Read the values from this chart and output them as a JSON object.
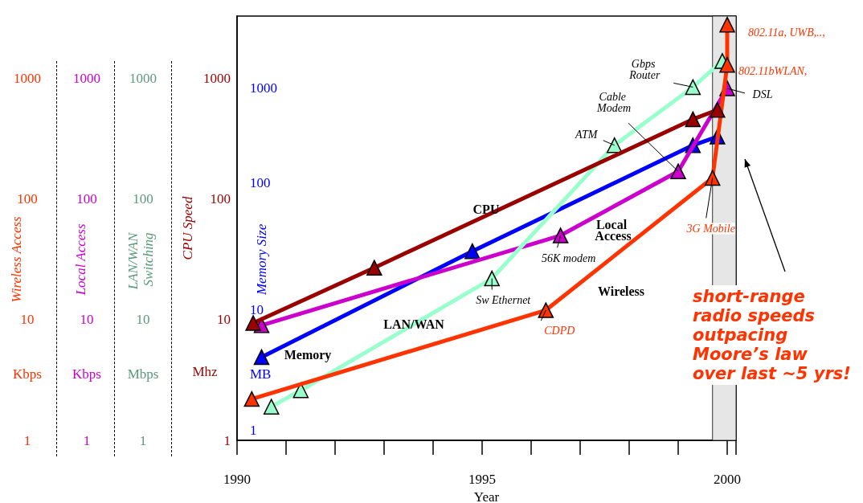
{
  "chart_data": {
    "type": "line",
    "xlabel": "Year",
    "ylabel": "CPU Speed",
    "xlim": [
      1990,
      2000.18
    ],
    "xticks": [
      1990,
      1995,
      2000
    ],
    "log": "y",
    "ylim": [
      1,
      3300
    ],
    "yticks": [
      1,
      10,
      100,
      1000
    ],
    "marker": "triangle",
    "legend": false,
    "grid": false,
    "series": [
      {
        "name": "CPU",
        "color": "#990000",
        "x": [
          1990.33,
          1992.8,
          1999.3,
          1999.8
        ],
        "values": [
          9.4,
          27,
          460,
          550
        ]
      },
      {
        "name": "Memory",
        "color": "#0000ff",
        "x": [
          1990.5,
          1994.8,
          1999.3,
          1999.8
        ],
        "values": [
          4.9,
          37,
          280,
          330
        ]
      },
      {
        "name": "Local Access",
        "color": "#cc00cc",
        "x": [
          1990.5,
          1996.6,
          1999.0,
          2000
        ],
        "values": [
          9,
          50,
          170,
          830
        ]
      },
      {
        "name": "LAN/WAN",
        "color": "#99ffcc",
        "x": [
          1990.7,
          1991.3,
          1995.2,
          1997.7,
          1999.3,
          1999.9
        ],
        "values": [
          1.9,
          2.6,
          22,
          280,
          850,
          1400
        ]
      },
      {
        "name": "Wireless",
        "color": "#ff3300",
        "x": [
          1990.3,
          1996.3,
          1999.7,
          2000,
          2000
        ],
        "values": [
          2.2,
          12,
          150,
          1300,
          2800
        ]
      }
    ],
    "bands": [
      {
        "axis": "x",
        "from": 1999.7,
        "to": 2000.18,
        "color": "#e6e6e6"
      }
    ],
    "annotations": [
      {
        "text": "Sw Ethernet",
        "x": 1995.2,
        "y": 22
      },
      {
        "text": "56K modem",
        "x": 1996.6,
        "y": 50
      },
      {
        "text": "CDPD",
        "x": 1996.3,
        "y": 12
      },
      {
        "text": "ATM",
        "x": 1997.7,
        "y": 280
      },
      {
        "text": "Cable Modem",
        "x": 1999.0,
        "y": 170
      },
      {
        "text": "Gbps Router",
        "x": 1999.3,
        "y": 850
      },
      {
        "text": "DSL",
        "x": 2000,
        "y": 830
      },
      {
        "text": "3G Mobile",
        "x": 1999.7,
        "y": 150
      },
      {
        "text": "802.11bWLAN,",
        "x": 2000,
        "y": 1300
      },
      {
        "text": "802.11a, UWB,..,",
        "x": 2000,
        "y": 2800
      },
      "short-range radio speeds outpacing Moore’s law over last ~5 yrs!",
      "Wireless Access",
      "1000",
      "100",
      "10",
      "Kbps",
      "1",
      "Local Access",
      "1000",
      "100",
      "10",
      "Kbps",
      "1",
      "LAN/WAN Switching",
      "1000",
      "100",
      "10",
      "Mbps",
      "1",
      "Memory Size",
      "1000",
      "100",
      "10",
      "MB",
      "1",
      "Mhz"
    ]
  }
}
